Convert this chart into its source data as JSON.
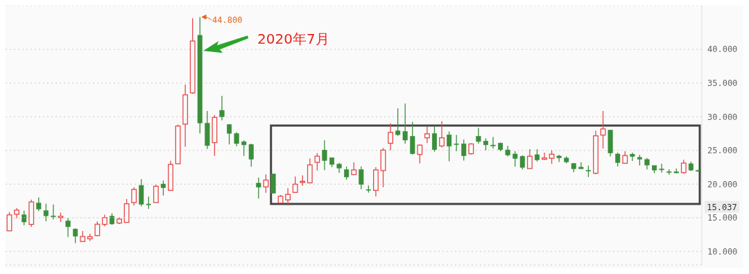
{
  "chart_data": {
    "type": "candlestick",
    "categories": [
      null,
      null,
      null,
      null,
      null,
      null,
      null,
      null,
      null,
      null,
      null,
      null,
      null,
      null,
      null,
      null,
      null,
      null,
      null,
      null,
      null,
      null,
      null,
      null,
      null,
      null,
      null,
      null,
      null,
      null,
      null,
      null,
      null,
      null,
      null,
      null,
      null,
      null,
      null,
      null,
      null,
      null,
      null,
      null,
      null,
      null,
      null,
      null,
      null,
      null,
      null,
      null,
      null,
      null,
      null,
      null,
      null,
      null,
      null,
      null,
      null,
      null,
      null,
      null,
      null,
      null,
      null,
      null,
      null,
      null,
      null,
      null,
      null,
      null,
      null,
      null,
      null,
      null,
      null,
      null,
      null,
      null,
      null,
      null,
      null,
      null,
      null,
      null,
      null,
      null,
      null,
      null,
      null,
      null,
      null
    ],
    "ohlc": [
      [
        13.07,
        15.84,
        13.07,
        15.44
      ],
      [
        15.53,
        16.44,
        14.93,
        16.14
      ],
      [
        15.44,
        16.07,
        13.88,
        14.38
      ],
      [
        14.02,
        17.69,
        13.67,
        17.36
      ],
      [
        17.19,
        18.03,
        16.0,
        16.31
      ],
      [
        16.07,
        17.09,
        14.48,
        15.29
      ],
      [
        15.29,
        16.98,
        14.76,
        15.26
      ],
      [
        15.03,
        15.77,
        14.38,
        15.23
      ],
      [
        14.55,
        14.96,
        12.16,
        13.67
      ],
      [
        13.34,
        13.44,
        11.24,
        12.26
      ],
      [
        11.49,
        13.04,
        11.49,
        12.23
      ],
      [
        11.89,
        12.63,
        11.55,
        12.2
      ],
      [
        12.36,
        14.45,
        12.26,
        14.05
      ],
      [
        14.02,
        15.47,
        13.74,
        15.03
      ],
      [
        15.26,
        15.67,
        13.98,
        14.08
      ],
      [
        14.22,
        15.09,
        14.08,
        14.82
      ],
      [
        14.32,
        17.79,
        14.32,
        17.09
      ],
      [
        17.26,
        19.54,
        16.84,
        19.21
      ],
      [
        19.82,
        20.73,
        16.71,
        17.01
      ],
      [
        17.05,
        18.13,
        16.34,
        17.01
      ],
      [
        17.26,
        19.92,
        17.26,
        19.68
      ],
      [
        20.02,
        20.53,
        18.3,
        19.45
      ],
      [
        19.07,
        23.46,
        18.98,
        22.92
      ],
      [
        23.02,
        28.83,
        23.02,
        28.62
      ],
      [
        28.9,
        34.77,
        25.56,
        33.25
      ],
      [
        33.54,
        44.62,
        33.41,
        41.24
      ],
      [
        42.09,
        44.8,
        27.51,
        29.06
      ],
      [
        29.03,
        30.85,
        25.21,
        25.72
      ],
      [
        26.16,
        30.24,
        24.2,
        29.9
      ],
      [
        30.95,
        33.08,
        29.46,
        30.0
      ],
      [
        28.83,
        28.93,
        25.89,
        27.54
      ],
      [
        27.51,
        27.71,
        25.62,
        26.02
      ],
      [
        26.3,
        26.5,
        24.2,
        25.82
      ],
      [
        25.89,
        26.02,
        22.58,
        23.69
      ],
      [
        20.15,
        20.96,
        17.86,
        19.54
      ],
      [
        19.58,
        21.44,
        18.72,
        20.6
      ],
      [
        21.51,
        21.51,
        18.63,
        18.63
      ],
      [
        17.19,
        18.4,
        17.19,
        18.2
      ],
      [
        17.66,
        19.41,
        16.84,
        18.47
      ],
      [
        18.77,
        21.13,
        18.77,
        19.99
      ],
      [
        20.25,
        21.3,
        19.75,
        20.42
      ],
      [
        20.19,
        23.8,
        20.19,
        22.85
      ],
      [
        23.23,
        24.6,
        22.01,
        24.14
      ],
      [
        25.05,
        26.5,
        22.08,
        23.49
      ],
      [
        23.93,
        23.93,
        22.52,
        22.92
      ],
      [
        22.96,
        23.16,
        21.67,
        22.38
      ],
      [
        22.15,
        22.62,
        20.66,
        21.06
      ],
      [
        21.41,
        23.23,
        21.41,
        22.11
      ],
      [
        22.15,
        22.62,
        19.24,
        19.95
      ],
      [
        19.2,
        19.79,
        18.73,
        19.17
      ],
      [
        19.07,
        22.52,
        18.16,
        22.11
      ],
      [
        22.01,
        25.35,
        19.54,
        25.05
      ],
      [
        26.06,
        29.0,
        25.01,
        27.68
      ],
      [
        27.91,
        31.25,
        27.14,
        27.34
      ],
      [
        27.81,
        31.96,
        26.0,
        26.53
      ],
      [
        27.1,
        29.23,
        24.4,
        24.51
      ],
      [
        24.4,
        25.89,
        23.09,
        25.79
      ],
      [
        26.87,
        28.59,
        26.09,
        27.47
      ],
      [
        27.51,
        28.59,
        24.81,
        25.11
      ],
      [
        25.66,
        29.33,
        25.45,
        26.87
      ],
      [
        27.31,
        27.81,
        23.39,
        25.62
      ],
      [
        25.99,
        27.31,
        24.88,
        25.96
      ],
      [
        25.99,
        26.6,
        23.49,
        24.2
      ],
      [
        24.51,
        26.06,
        24.4,
        25.96
      ],
      [
        27.1,
        28.32,
        26.02,
        26.33
      ],
      [
        26.4,
        26.8,
        25.01,
        25.82
      ],
      [
        25.8,
        27.0,
        25.28,
        25.76
      ],
      [
        26.09,
        26.19,
        24.88,
        25.11
      ],
      [
        25.08,
        25.69,
        24.1,
        24.3
      ],
      [
        24.47,
        24.88,
        22.58,
        23.8
      ],
      [
        24.14,
        24.27,
        22.17,
        22.48
      ],
      [
        22.31,
        25.18,
        22.31,
        24.14
      ],
      [
        24.37,
        25.18,
        23.36,
        23.59
      ],
      [
        23.69,
        24.68,
        23.59,
        23.89
      ],
      [
        23.83,
        25.0,
        23.0,
        24.44
      ],
      [
        24.17,
        24.34,
        23.29,
        23.9
      ],
      [
        23.87,
        24.14,
        23.09,
        23.29
      ],
      [
        23.06,
        23.12,
        21.77,
        22.28
      ],
      [
        22.52,
        23.23,
        22.28,
        22.28
      ],
      [
        22.04,
        22.75,
        21.06,
        22.01
      ],
      [
        21.61,
        27.91,
        21.47,
        27.17
      ],
      [
        27.27,
        30.85,
        25.28,
        28.19
      ],
      [
        28.02,
        28.02,
        24.1,
        24.61
      ],
      [
        24.47,
        24.68,
        22.62,
        23.19
      ],
      [
        23.09,
        24.88,
        23.09,
        24.24
      ],
      [
        24.44,
        24.68,
        23.43,
        24.1
      ],
      [
        23.97,
        24.34,
        22.78,
        23.69
      ],
      [
        23.66,
        23.87,
        22.17,
        22.82
      ],
      [
        22.75,
        22.75,
        21.64,
        22.08
      ],
      [
        22.24,
        23.03,
        21.71,
        22.21
      ],
      [
        21.84,
        22.21,
        21.41,
        21.81
      ],
      [
        21.84,
        22.32,
        21.61,
        21.67
      ],
      [
        21.71,
        23.63,
        21.57,
        23.12
      ],
      [
        23.03,
        23.33,
        21.94,
        22.08
      ],
      [
        22.04,
        22.14,
        21.81,
        21.91
      ]
    ],
    "colors": [
      "#e84646",
      "#e84646",
      "#3a8f3a",
      "#e84646",
      "#3a8f3a",
      "#3a8f3a",
      "#3a8f3a",
      "#e84646",
      "#3a8f3a",
      "#3a8f3a",
      "#e84646",
      "#e84646",
      "#e84646",
      "#e84646",
      "#3a8f3a",
      "#e84646",
      "#e84646",
      "#e84646",
      "#3a8f3a",
      "#3a8f3a",
      "#e84646",
      "#3a8f3a",
      "#e84646",
      "#e84646",
      "#e84646",
      "#e84646",
      "#3a8f3a",
      "#3a8f3a",
      "#e84646",
      "#3a8f3a",
      "#3a8f3a",
      "#3a8f3a",
      "#3a8f3a",
      "#3a8f3a",
      "#3a8f3a",
      "#e84646",
      "#3a8f3a",
      "#e84646",
      "#e84646",
      "#e84646",
      "#e84646",
      "#e84646",
      "#e84646",
      "#3a8f3a",
      "#3a8f3a",
      "#3a8f3a",
      "#3a8f3a",
      "#e84646",
      "#3a8f3a",
      "#3a8f3a",
      "#e84646",
      "#e84646",
      "#e84646",
      "#3a8f3a",
      "#3a8f3a",
      "#3a8f3a",
      "#e84646",
      "#e84646",
      "#3a8f3a",
      "#e84646",
      "#3a8f3a",
      "#3a8f3a",
      "#3a8f3a",
      "#e84646",
      "#3a8f3a",
      "#3a8f3a",
      "#3a8f3a",
      "#3a8f3a",
      "#3a8f3a",
      "#3a8f3a",
      "#3a8f3a",
      "#e84646",
      "#3a8f3a",
      "#e84646",
      "#e84646",
      "#3a8f3a",
      "#3a8f3a",
      "#3a8f3a",
      "#3a8f3a",
      "#3a8f3a",
      "#e84646",
      "#e84646",
      "#3a8f3a",
      "#3a8f3a",
      "#e84646",
      "#3a8f3a",
      "#3a8f3a",
      "#3a8f3a",
      "#3a8f3a",
      "#3a8f3a",
      "#3a8f3a",
      "#3a8f3a",
      "#e84646",
      "#3a8f3a",
      "#3a8f3a"
    ],
    "ylim": [
      8,
      46.5
    ],
    "yticks": [
      {
        "value": 10,
        "label": "10.000"
      },
      {
        "value": 15,
        "label": "15.000"
      },
      {
        "value": 20,
        "label": "20.000"
      },
      {
        "value": 25,
        "label": "25.000"
      },
      {
        "value": 30,
        "label": "30.000"
      },
      {
        "value": 35,
        "label": "35.000"
      },
      {
        "value": 40,
        "label": "40.000"
      }
    ],
    "grid": "y",
    "tick_labels": "y",
    "ref_lines": [
      {
        "axis": "y",
        "value": 15.037,
        "label": "15.037"
      }
    ],
    "annotations": [
      "44.800",
      "2020年7月"
    ]
  }
}
